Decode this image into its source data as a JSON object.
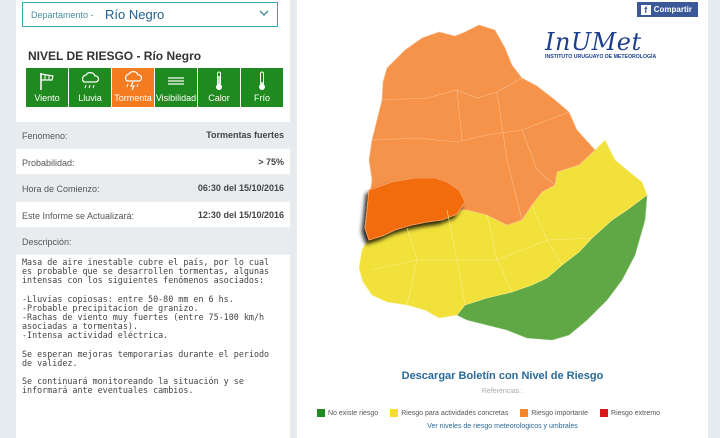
{
  "filter": {
    "label": "Departamento -",
    "value": "Río Negro"
  },
  "title": "NIVEL DE RIESGO - Río Negro",
  "phenomena": [
    {
      "label": "Viento",
      "icon": "wind-icon",
      "active": false
    },
    {
      "label": "Lluvia",
      "icon": "rain-icon",
      "active": false
    },
    {
      "label": "Tormenta",
      "icon": "storm-icon",
      "active": true
    },
    {
      "label": "Visibilidad",
      "icon": "fog-icon",
      "active": false
    },
    {
      "label": "Calor",
      "icon": "thermometer-hot-icon",
      "active": false
    },
    {
      "label": "Frío",
      "icon": "thermometer-cold-icon",
      "active": false
    }
  ],
  "details": {
    "fenomeno_label": "Fenomeno:",
    "fenomeno_value": "Tormentas fuertes",
    "probabilidad_label": "Probabilidad:",
    "probabilidad_value": "> 75%",
    "hora_label": "Hora de Comienzo:",
    "hora_value": "06:30 del 15/10/2016",
    "actualiza_label": "Este Informe se Actualizará:",
    "actualiza_value": "12:30 del 15/10/2016",
    "descripcion_label": "Descripción:"
  },
  "description": {
    "p1": "Masa de aire inestable cubre el país, por lo cual es probable que se desarrollen tormentas, algunas intensas con los siguientes fenómenos asociados:",
    "p2": "-Lluvias copiosas: entre 50-80 mm en 6 hs.\n-Probable precipitacion de granizo.\n-Rachas de viento muy fuertes (entre 75-100 km/h asociadas a tormentas).\n-Intensa actividad eléctrica.",
    "p3": "Se esperan mejoras temporarias durante el periodo de validez.",
    "p4": "Se continuará monitoreando la situación y se informará ante eventuales cambios."
  },
  "share": {
    "label": "Compartir"
  },
  "logo": {
    "name": "InUMet",
    "subtitle": "INSTITUTO URUGUAYO DE METEOROLOGÍA"
  },
  "download": "Descargar Boletín con Nivel de Riesgo",
  "references_label": "Referencias :",
  "legend": [
    {
      "label": "No existe riesgo",
      "color": "#1f8a1f"
    },
    {
      "label": "Riesgo para actividades concretas",
      "color": "#f5dd2b"
    },
    {
      "label": "Riesgo importante",
      "color": "#f4872c"
    },
    {
      "label": "Riesgo extremo",
      "color": "#d7191c"
    }
  ],
  "legend_link": "Ver niveles de riesgo meteorologicos y umbrales",
  "colors": {
    "green": "#5fa845",
    "yellow": "#f2e13a",
    "orange": "#f5934a",
    "highlight": "#f26c0f"
  }
}
